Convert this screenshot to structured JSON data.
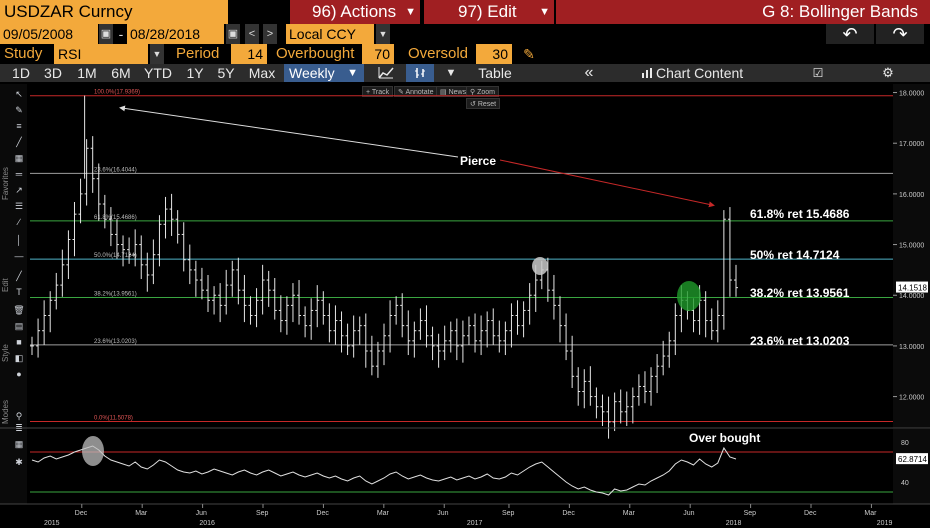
{
  "header": {
    "ticker": "USDZAR Curncy",
    "actions_label": "96) Actions",
    "edit_label": "97) Edit",
    "graph_title": "G 8: Bollinger Bands"
  },
  "dates": {
    "start": "09/05/2008",
    "end": "08/28/2018",
    "separator": "-",
    "currency": "Local CCY"
  },
  "study": {
    "study_label": "Study",
    "study_value": "RSI",
    "period_label": "Period",
    "period_value": "14",
    "overbought_label": "Overbought",
    "overbought_value": "70",
    "oversold_label": "Oversold",
    "oversold_value": "30"
  },
  "toolbar": {
    "ranges": [
      "1D",
      "3D",
      "1M",
      "6M",
      "YTD",
      "1Y",
      "5Y",
      "Max"
    ],
    "frequency": "Weekly",
    "table_label": "Table",
    "chart_content_label": "Chart Content"
  },
  "chart_tools": {
    "track": "Track",
    "annotate": "Annotate",
    "news": "News",
    "zoom": "Zoom",
    "reset": "Reset"
  },
  "sidebar_words": [
    "Favorites",
    "Edit",
    "Style",
    "Modes"
  ],
  "annotations": {
    "pierce": "Pierce",
    "over_bought": "Over bought",
    "ret_618": "61.8% ret 15.4686",
    "ret_50": "50% ret 14.7124",
    "ret_382": "38.2% ret 13.9561",
    "ret_236": "23.6% ret 13.0203"
  },
  "chart_data": {
    "type": "bar",
    "fib_levels": [
      {
        "label": "100.0%(17.9369)",
        "value": 17.9369,
        "color": "#c62828"
      },
      {
        "label": "23.6%(16.4044)",
        "value": 16.4044,
        "color": "#9e9e9e"
      },
      {
        "label": "61.8%(15.4686)",
        "value": 15.4686,
        "color": "#3aa641"
      },
      {
        "label": "50.0%(14.7124)",
        "value": 14.7124,
        "color": "#4fb3c8"
      },
      {
        "label": "38.2%(13.9561)",
        "value": 13.9561,
        "color": "#3aa641"
      },
      {
        "label": "23.6%(13.0203)",
        "value": 13.0203,
        "color": "#9e9e9e"
      },
      {
        "label": "0.0%(11.5078)",
        "value": 11.5078,
        "color": "#c62828"
      }
    ],
    "price_axis": {
      "ticks": [
        "18.0000",
        "17.0000",
        "16.0000",
        "15.0000",
        "14.0000",
        "13.0000",
        "12.0000"
      ],
      "ylim": [
        11.4,
        18.05
      ]
    },
    "last_price": "14.1518",
    "rsi": {
      "ticks": [
        "80",
        "40"
      ],
      "last": "62.8714",
      "overbought": 70,
      "oversold": 30
    },
    "x_ticks": [
      {
        "label": "Dec",
        "t": 0.06
      },
      {
        "label": "Mar",
        "t": 0.13
      },
      {
        "label": "Jun",
        "t": 0.2
      },
      {
        "label": "Sep",
        "t": 0.27
      },
      {
        "label": "Dec",
        "t": 0.34
      },
      {
        "label": "Mar",
        "t": 0.41
      },
      {
        "label": "Jun",
        "t": 0.48
      },
      {
        "label": "Sep",
        "t": 0.555
      },
      {
        "label": "Dec",
        "t": 0.625
      },
      {
        "label": "Mar",
        "t": 0.695
      },
      {
        "label": "Jun",
        "t": 0.765
      },
      {
        "label": "Sep",
        "t": 0.835
      },
      {
        "label": "Dec",
        "t": 0.905
      },
      {
        "label": "Mar",
        "t": 0.975
      }
    ],
    "years": [
      {
        "label": "2015",
        "t": 0.0
      },
      {
        "label": "2016",
        "t": 0.18
      },
      {
        "label": "2017",
        "t": 0.49
      },
      {
        "label": "2018",
        "t": 0.79
      },
      {
        "label": "2019",
        "t": 0.965
      }
    ],
    "weekly_closes": [
      13.0,
      13.3,
      13.6,
      13.9,
      14.2,
      14.6,
      15.1,
      15.6,
      16.0,
      16.9,
      16.3,
      15.8,
      15.5,
      15.2,
      15.0,
      14.9,
      14.8,
      15.0,
      14.6,
      14.4,
      14.8,
      15.4,
      15.7,
      15.5,
      15.2,
      14.7,
      14.5,
      14.3,
      14.1,
      13.9,
      14.0,
      13.8,
      14.2,
      14.5,
      14.1,
      13.8,
      13.6,
      13.9,
      14.3,
      14.1,
      13.7,
      13.5,
      13.8,
      14.0,
      13.6,
      13.4,
      13.7,
      13.9,
      13.6,
      13.3,
      13.5,
      13.2,
      13.0,
      13.3,
      13.4,
      12.9,
      12.6,
      12.9,
      13.2,
      13.6,
      13.8,
      13.4,
      13.1,
      13.3,
      13.5,
      13.2,
      13.0,
      12.9,
      13.1,
      13.3,
      13.0,
      13.2,
      13.4,
      13.1,
      13.3,
      13.5,
      13.2,
      13.1,
      13.3,
      13.6,
      13.4,
      13.7,
      14.0,
      14.3,
      14.5,
      14.1,
      13.8,
      13.4,
      12.9,
      12.4,
      12.1,
      12.3,
      12.0,
      11.8,
      11.7,
      11.5,
      11.9,
      11.7,
      11.8,
      12.0,
      12.2,
      12.1,
      12.4,
      12.6,
      12.8,
      13.1,
      13.6,
      13.9,
      13.7,
      13.5,
      13.9,
      13.5,
      13.3,
      13.6,
      15.5,
      14.3,
      14.15
    ],
    "rsi_values": [
      62,
      60,
      64,
      66,
      63,
      65,
      67,
      70,
      72,
      74,
      76,
      72,
      66,
      62,
      60,
      58,
      56,
      60,
      55,
      53,
      57,
      62,
      60,
      56,
      52,
      50,
      49,
      51,
      48,
      50,
      53,
      51,
      49,
      47,
      50,
      52,
      49,
      47,
      50,
      52,
      49,
      46,
      48,
      50,
      47,
      45,
      47,
      49,
      46,
      44,
      46,
      43,
      41,
      44,
      46,
      41,
      38,
      41,
      44,
      48,
      50,
      46,
      43,
      45,
      47,
      44,
      42,
      41,
      43,
      45,
      42,
      44,
      46,
      43,
      45,
      48,
      44,
      43,
      45,
      49,
      47,
      51,
      55,
      58,
      60,
      55,
      50,
      45,
      40,
      36,
      33,
      35,
      32,
      30,
      29,
      27,
      33,
      31,
      32,
      35,
      38,
      37,
      41,
      44,
      47,
      51,
      58,
      62,
      60,
      57,
      63,
      58,
      55,
      59,
      74,
      65,
      63
    ]
  }
}
